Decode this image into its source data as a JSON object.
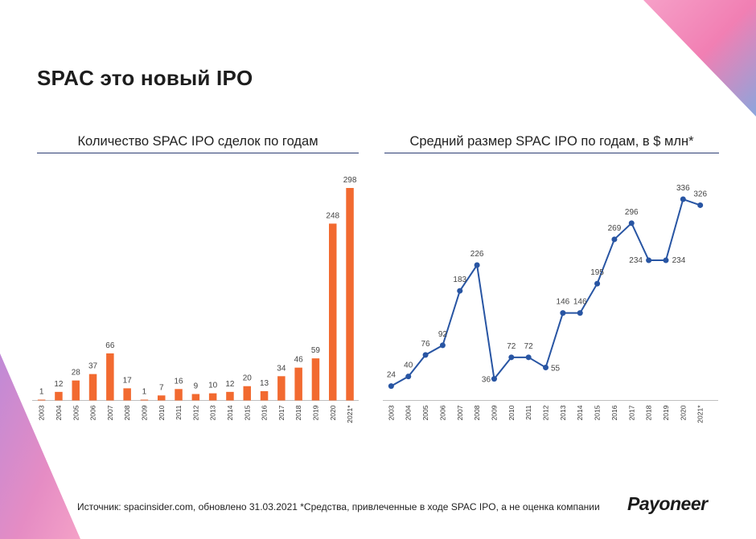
{
  "slide": {
    "title": "SPAC это новый IPO",
    "footer": "Источник: spacinsider.com, обновлено 31.03.2021  *Средства, привлеченные в ходе SPAC IPO, а не оценка компании",
    "logo": "Payoneer"
  },
  "colors": {
    "bar": "#f26a30",
    "line": "#2855a3",
    "rule": "#2c3e73"
  },
  "chart_data": [
    {
      "type": "bar",
      "title": "Количество SPAC IPO сделок по годам",
      "categories": [
        "2003",
        "2004",
        "2005",
        "2006",
        "2007",
        "2008",
        "2009",
        "2010",
        "2011",
        "2012",
        "2013",
        "2014",
        "2015",
        "2016",
        "2017",
        "2018",
        "2019",
        "2020",
        "2021*"
      ],
      "values": [
        1,
        12,
        28,
        37,
        66,
        17,
        1,
        7,
        16,
        9,
        10,
        12,
        20,
        13,
        34,
        46,
        59,
        248,
        298
      ],
      "ylim": [
        0,
        298
      ]
    },
    {
      "type": "line",
      "title": "Средний размер SPAC IPO по годам, в $ млн*",
      "categories": [
        "2003",
        "2004",
        "2005",
        "2006",
        "2007",
        "2008",
        "2009",
        "2010",
        "2011",
        "2012",
        "2013",
        "2014",
        "2015",
        "2016",
        "2017",
        "2018",
        "2019",
        "2020",
        "2021*"
      ],
      "values": [
        24,
        40,
        76,
        92,
        183,
        226,
        36,
        72,
        72,
        55,
        146,
        146,
        195,
        269,
        296,
        234,
        234,
        336,
        326
      ],
      "ylim": [
        0,
        336
      ]
    }
  ]
}
